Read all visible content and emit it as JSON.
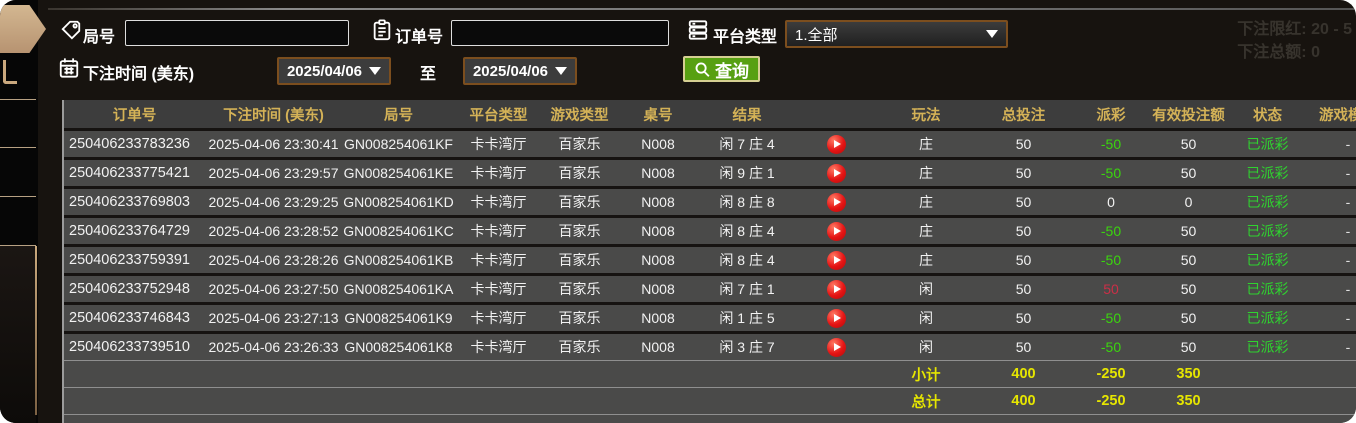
{
  "filters": {
    "round_label": "局号",
    "order_label": "订单号",
    "platform_label": "平台类型",
    "platform_value": "1.全部",
    "bet_time_label": "下注时间 (美东)",
    "date_from": "2025/04/06",
    "date_to": "2025/04/06",
    "to_label": "至",
    "query_label": "查询"
  },
  "faint": {
    "line1": "下注限红: 20 - 5",
    "line2": "下注总额: 0"
  },
  "table": {
    "headers": [
      "订单号",
      "下注时间 (美东)",
      "局号",
      "平台类型",
      "游戏类型",
      "桌号",
      "结果",
      "",
      "玩法",
      "总投注",
      "派彩",
      "有效投注额",
      "状态",
      "游戏模式"
    ],
    "rows": [
      {
        "order": "250406233783236",
        "time": "2025-04-06 23:30:41",
        "round": "GN008254061KF",
        "platform": "卡卡湾厅",
        "game": "百家乐",
        "table_no": "N008",
        "result": "闲 7 庄 4",
        "play_type": "庄",
        "total_bet": "50",
        "payout": "-50",
        "valid_bet": "50",
        "status": "已派彩",
        "mode": "-"
      },
      {
        "order": "250406233775421",
        "time": "2025-04-06 23:29:57",
        "round": "GN008254061KE",
        "platform": "卡卡湾厅",
        "game": "百家乐",
        "table_no": "N008",
        "result": "闲 9 庄 1",
        "play_type": "庄",
        "total_bet": "50",
        "payout": "-50",
        "valid_bet": "50",
        "status": "已派彩",
        "mode": "-"
      },
      {
        "order": "250406233769803",
        "time": "2025-04-06 23:29:25",
        "round": "GN008254061KD",
        "platform": "卡卡湾厅",
        "game": "百家乐",
        "table_no": "N008",
        "result": "闲 8 庄 8",
        "play_type": "庄",
        "total_bet": "50",
        "payout": "0",
        "valid_bet": "0",
        "status": "已派彩",
        "mode": "-"
      },
      {
        "order": "250406233764729",
        "time": "2025-04-06 23:28:52",
        "round": "GN008254061KC",
        "platform": "卡卡湾厅",
        "game": "百家乐",
        "table_no": "N008",
        "result": "闲 8 庄 4",
        "play_type": "庄",
        "total_bet": "50",
        "payout": "-50",
        "valid_bet": "50",
        "status": "已派彩",
        "mode": "-"
      },
      {
        "order": "250406233759391",
        "time": "2025-04-06 23:28:26",
        "round": "GN008254061KB",
        "platform": "卡卡湾厅",
        "game": "百家乐",
        "table_no": "N008",
        "result": "闲 8 庄 4",
        "play_type": "庄",
        "total_bet": "50",
        "payout": "-50",
        "valid_bet": "50",
        "status": "已派彩",
        "mode": "-"
      },
      {
        "order": "250406233752948",
        "time": "2025-04-06 23:27:50",
        "round": "GN008254061KA",
        "platform": "卡卡湾厅",
        "game": "百家乐",
        "table_no": "N008",
        "result": "闲 7 庄 1",
        "play_type": "闲",
        "total_bet": "50",
        "payout": "50",
        "valid_bet": "50",
        "status": "已派彩",
        "mode": "-"
      },
      {
        "order": "250406233746843",
        "time": "2025-04-06 23:27:13",
        "round": "GN008254061K9",
        "platform": "卡卡湾厅",
        "game": "百家乐",
        "table_no": "N008",
        "result": "闲 1 庄 5",
        "play_type": "闲",
        "total_bet": "50",
        "payout": "-50",
        "valid_bet": "50",
        "status": "已派彩",
        "mode": "-"
      },
      {
        "order": "250406233739510",
        "time": "2025-04-06 23:26:33",
        "round": "GN008254061K8",
        "platform": "卡卡湾厅",
        "game": "百家乐",
        "table_no": "N008",
        "result": "闲 3 庄 7",
        "play_type": "闲",
        "total_bet": "50",
        "payout": "-50",
        "valid_bet": "50",
        "status": "已派彩",
        "mode": "-"
      }
    ],
    "subtotal": {
      "label": "小计",
      "total_bet": "400",
      "payout": "-250",
      "valid_bet": "350"
    },
    "total": {
      "label": "总计",
      "total_bet": "400",
      "payout": "-250",
      "valid_bet": "350"
    }
  },
  "colors": {
    "panel_bg": "#17130f",
    "row_bg": "#4a4a49",
    "header_gold": "#d4b257",
    "win_red": "#cb2f47",
    "loss_green": "#3bd50e",
    "summary_yellow": "#e6e600",
    "query_green": "#57a012",
    "sidebar_tan": "#c9a87e",
    "date_border_brown": "#7c4e1e"
  }
}
